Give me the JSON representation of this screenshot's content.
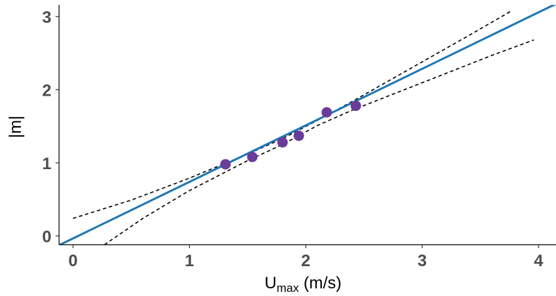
{
  "chart_data": {
    "type": "scatter",
    "title": "",
    "xlabel": {
      "main": "U",
      "subscript": "max",
      "suffix": " (m/s)"
    },
    "ylabel": "|m|",
    "xlim": [
      -0.12,
      4.15
    ],
    "ylim": [
      -0.12,
      3.16
    ],
    "xticks": [
      0,
      1,
      2,
      3,
      4
    ],
    "yticks": [
      0,
      1,
      2,
      3
    ],
    "grid": false,
    "legend": "none",
    "points": [
      {
        "x": 1.31,
        "y": 0.98
      },
      {
        "x": 1.54,
        "y": 1.08
      },
      {
        "x": 1.8,
        "y": 1.28
      },
      {
        "x": 1.94,
        "y": 1.37
      },
      {
        "x": 2.18,
        "y": 1.69
      },
      {
        "x": 2.43,
        "y": 1.78
      }
    ],
    "fit_line": {
      "slope": 0.773,
      "intercept": -0.034,
      "x_range": [
        -0.12,
        4.15
      ]
    },
    "confidence_upper": [
      {
        "x": 0.0,
        "y": 0.24
      },
      {
        "x": 0.5,
        "y": 0.49
      },
      {
        "x": 1.0,
        "y": 0.79
      },
      {
        "x": 1.5,
        "y": 1.12
      },
      {
        "x": 1.8,
        "y": 1.33
      },
      {
        "x": 2.1,
        "y": 1.58
      },
      {
        "x": 2.4,
        "y": 1.84
      },
      {
        "x": 2.7,
        "y": 2.11
      },
      {
        "x": 3.0,
        "y": 2.38
      },
      {
        "x": 3.4,
        "y": 2.74
      },
      {
        "x": 3.77,
        "y": 3.08
      }
    ],
    "confidence_lower": [
      {
        "x": 0.27,
        "y": -0.12
      },
      {
        "x": 0.6,
        "y": 0.24
      },
      {
        "x": 1.0,
        "y": 0.62
      },
      {
        "x": 1.5,
        "y": 1.03
      },
      {
        "x": 1.8,
        "y": 1.25
      },
      {
        "x": 2.1,
        "y": 1.51
      },
      {
        "x": 2.4,
        "y": 1.72
      },
      {
        "x": 2.8,
        "y": 1.97
      },
      {
        "x": 3.2,
        "y": 2.22
      },
      {
        "x": 3.6,
        "y": 2.47
      },
      {
        "x": 3.96,
        "y": 2.68
      }
    ],
    "colors": {
      "points": "#6a3d9a",
      "fit": "#1f77b4",
      "bands": "#000000"
    }
  }
}
